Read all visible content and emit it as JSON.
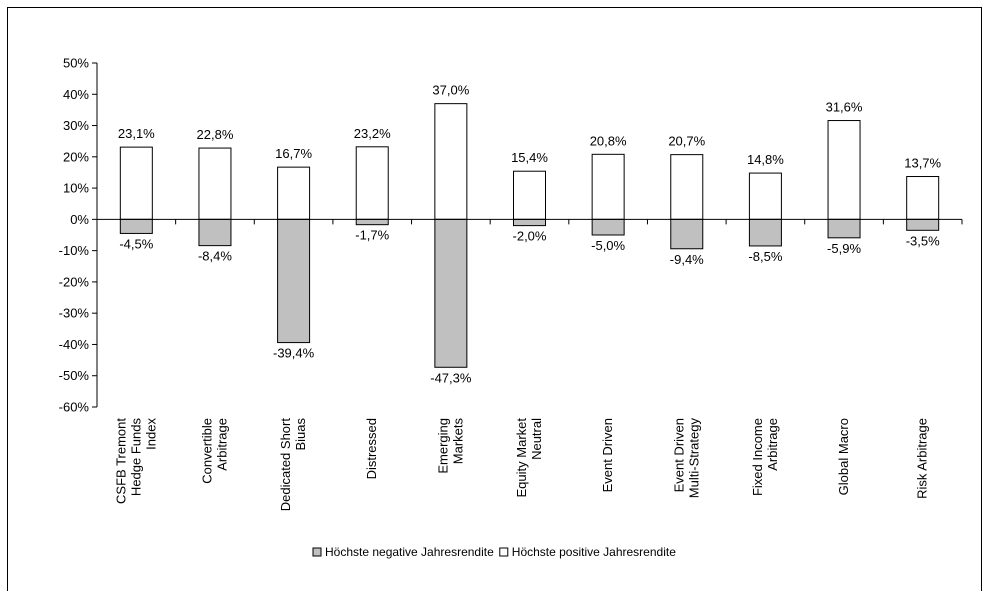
{
  "chart_data": {
    "type": "bar",
    "title": "",
    "xlabel": "",
    "ylabel": "",
    "ylim": [
      -0.6,
      0.5
    ],
    "y_ticks": [
      "50%",
      "40%",
      "30%",
      "20%",
      "10%",
      "0%",
      "-10%",
      "-20%",
      "-30%",
      "-40%",
      "-50%",
      "-60%"
    ],
    "y_tick_values": [
      0.5,
      0.4,
      0.3,
      0.2,
      0.1,
      0.0,
      -0.1,
      -0.2,
      -0.3,
      -0.4,
      -0.5,
      -0.6
    ],
    "categories": [
      [
        "CSFB Tremont",
        "Hedge Funds",
        "Index"
      ],
      [
        "Convertible",
        "Arbitrage"
      ],
      [
        "Dedicated Short",
        "Biuas"
      ],
      [
        "Distressed"
      ],
      [
        "Emerging",
        "Markets"
      ],
      [
        "Equity Market",
        "Neutral"
      ],
      [
        "Event Driven"
      ],
      [
        "Event Driven",
        "Multi-Strategy"
      ],
      [
        "Fixed Income",
        "Arbitrage"
      ],
      [
        "Global Macro"
      ],
      [
        "Risk Arbitrage"
      ]
    ],
    "series": [
      {
        "name": "Höchste negative Jahresrendite",
        "color": "#c0c0c0",
        "values": [
          -0.045,
          -0.084,
          -0.394,
          -0.017,
          -0.473,
          -0.02,
          -0.05,
          -0.094,
          -0.085,
          -0.059,
          -0.035
        ],
        "labels": [
          "-4,5%",
          "-8,4%",
          "-39,4%",
          "-1,7%",
          "-47,3%",
          "-2,0%",
          "-5,0%",
          "-9,4%",
          "-8,5%",
          "-5,9%",
          "-3,5%"
        ]
      },
      {
        "name": "Höchste positive Jahresrendite",
        "color": "#ffffff",
        "values": [
          0.231,
          0.228,
          0.167,
          0.232,
          0.37,
          0.154,
          0.208,
          0.207,
          0.148,
          0.316,
          0.137
        ],
        "labels": [
          "23,1%",
          "22,8%",
          "16,7%",
          "23,2%",
          "37,0%",
          "15,4%",
          "20,8%",
          "20,7%",
          "14,8%",
          "31,6%",
          "13,7%"
        ]
      }
    ],
    "grid": false,
    "legend_position": "bottom"
  }
}
